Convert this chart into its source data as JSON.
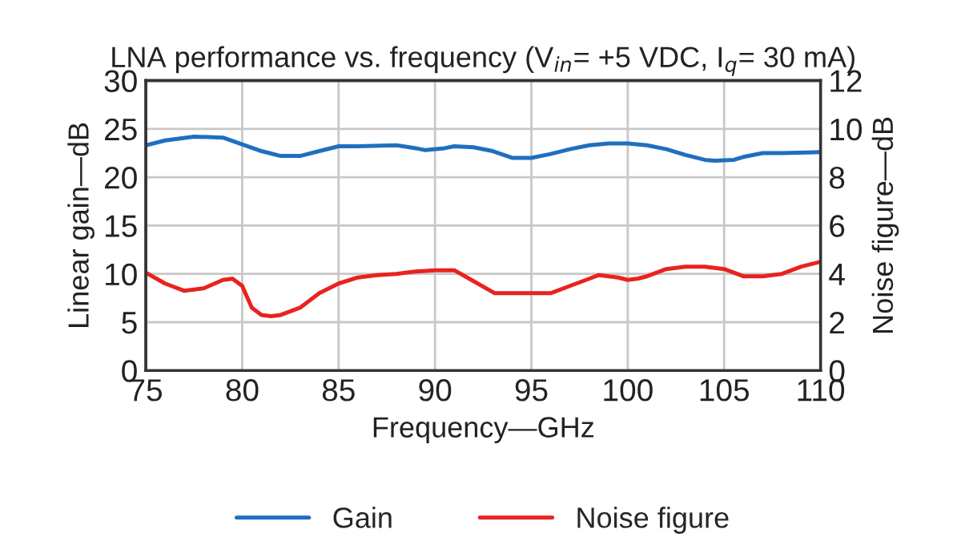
{
  "chart_data": {
    "type": "line",
    "title": "LNA performance vs. frequency (V$_{in}$= +5 VDC, I$_{q}$= 30 mA)",
    "xlabel": "Frequency—GHz",
    "ylabel": "Linear gain—dB",
    "y2label": "Noise figure—dB",
    "xlim": [
      75,
      110
    ],
    "xticks": [
      75,
      80,
      85,
      90,
      95,
      100,
      105,
      110
    ],
    "ylim": [
      0,
      30
    ],
    "yticks": [
      0,
      5,
      10,
      15,
      20,
      25,
      30
    ],
    "y2lim": [
      0,
      12
    ],
    "y2ticks": [
      0,
      2,
      4,
      6,
      8,
      10,
      12
    ],
    "grid": true,
    "legend": "bottom",
    "line_style": "solid",
    "marker": "none",
    "series": [
      {
        "name": "Gain",
        "color": "#1f6fc0",
        "x": [
          75,
          76,
          77.5,
          79,
          80,
          81,
          82,
          83,
          84,
          85,
          86,
          88,
          89,
          89.5,
          90.5,
          91,
          92,
          93,
          94,
          95,
          96,
          97,
          98,
          99,
          100,
          101,
          102,
          103,
          104,
          104.5,
          105.5,
          106,
          107,
          108,
          110
        ],
        "values": [
          23.3,
          23.8,
          24.2,
          24.1,
          23.4,
          22.7,
          22.2,
          22.2,
          22.7,
          23.2,
          23.2,
          23.3,
          23.0,
          22.8,
          23.0,
          23.2,
          23.1,
          22.7,
          22.0,
          22.0,
          22.4,
          22.9,
          23.3,
          23.5,
          23.5,
          23.3,
          22.9,
          22.3,
          21.8,
          21.7,
          21.8,
          22.1,
          22.5,
          22.5,
          22.6
        ]
      },
      {
        "name": "Noise figure",
        "color": "#e8231f",
        "axis": "y2",
        "x": [
          75,
          76,
          77,
          78,
          79,
          79.5,
          80,
          80.5,
          81,
          81.5,
          82,
          83,
          84,
          85,
          86,
          87,
          88,
          89,
          90,
          91,
          92,
          93.1,
          94,
          96,
          97,
          98,
          98.5,
          99.5,
          100,
          100.5,
          101,
          102,
          103,
          104,
          105,
          106,
          107,
          108,
          109,
          110
        ],
        "values": [
          4.05,
          3.6,
          3.3,
          3.4,
          3.75,
          3.8,
          3.5,
          2.6,
          2.3,
          2.25,
          2.3,
          2.6,
          3.2,
          3.6,
          3.85,
          3.95,
          4.0,
          4.1,
          4.15,
          4.15,
          3.7,
          3.2,
          3.2,
          3.2,
          3.5,
          3.8,
          3.95,
          3.85,
          3.75,
          3.8,
          3.9,
          4.2,
          4.3,
          4.3,
          4.2,
          3.9,
          3.9,
          4.0,
          4.3,
          4.5
        ]
      }
    ]
  }
}
